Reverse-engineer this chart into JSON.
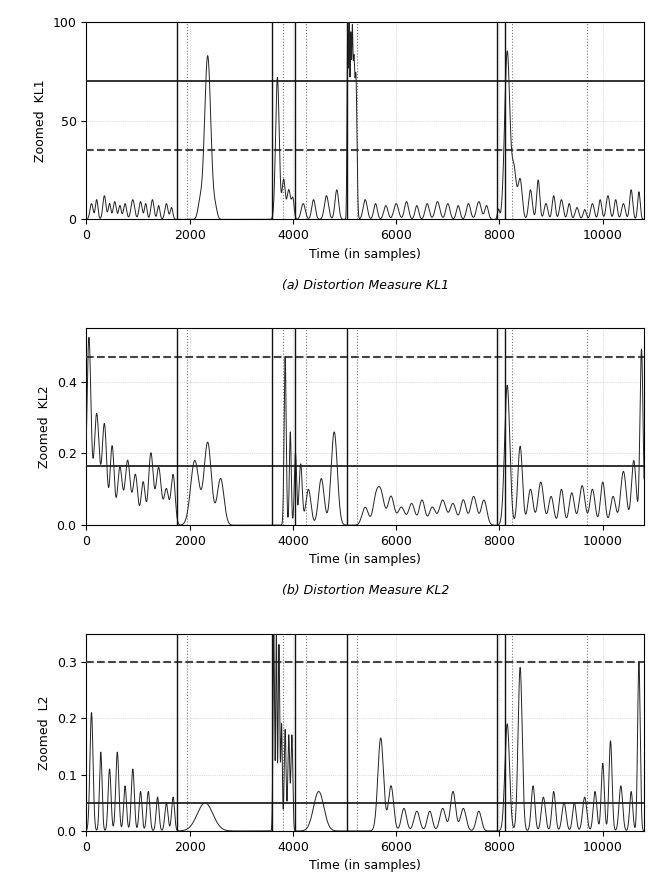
{
  "subplot_captions": [
    "(a) Distortion Measure KL1",
    "(b) Distortion Measure KL2",
    "(c) Distortion Measure L2"
  ],
  "ylabel1": "Zoomed  KL1",
  "ylabel2": "Zoomed  KL2",
  "ylabel3": "Zoomed  L2",
  "xlabel": "Time (in samples)",
  "xlim": [
    0,
    10800
  ],
  "ylim1": [
    0,
    100
  ],
  "ylim2": [
    0,
    0.55
  ],
  "ylim3": [
    0,
    0.35
  ],
  "yticks1": [
    0,
    50,
    100
  ],
  "yticks2": [
    0,
    0.2,
    0.4
  ],
  "yticks3": [
    0,
    0.1,
    0.2,
    0.3
  ],
  "solid_hline1": 70,
  "dashed_hline1": 35,
  "solid_hline2": 0.165,
  "dashed_hline2": 0.47,
  "solid_hline3": 0.05,
  "dashed_hline3": 0.3,
  "vlines_solid": [
    1750,
    3600,
    4050,
    5050,
    7950,
    8100
  ],
  "vlines_dotted": [
    1950,
    3800,
    4250,
    5250,
    8250,
    9700
  ],
  "figsize": [
    6.64,
    8.84
  ],
  "dpi": 100,
  "line_color": "#222222",
  "hline_solid_color": "#222222",
  "hline_dashed_color": "#444444",
  "vline_solid_color": "#111111",
  "vline_dotted_color": "#777777",
  "grid_dotted_color": "#bbbbbb",
  "bg_color": "#ffffff"
}
